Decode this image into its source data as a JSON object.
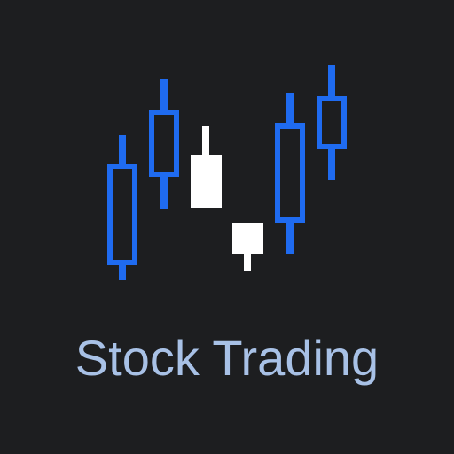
{
  "logo": {
    "title": "Stock Trading",
    "background": "#1d1e20",
    "title_color": "#a8c1e6",
    "icon": "candlestick-chart-icon"
  },
  "colors": {
    "bullish": "#1f6bf0",
    "bearish": "#ffffff"
  }
}
